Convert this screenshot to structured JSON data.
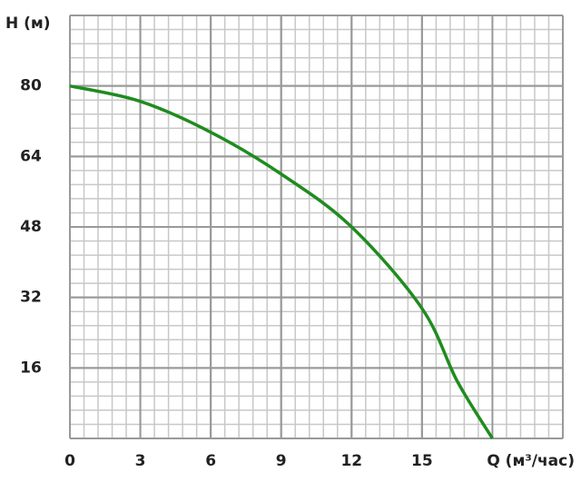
{
  "chart_data": {
    "type": "line",
    "y_label": "H (м)",
    "x_label": "Q (м³/час)",
    "x": [
      0,
      3,
      6,
      9,
      12,
      15,
      16.5,
      18
    ],
    "series": [
      {
        "color": "#1f8c1f",
        "values": [
          80,
          76.5,
          69.5,
          60,
          48,
          29.5,
          13,
          0
        ]
      }
    ],
    "xlim": [
      0,
      21
    ],
    "ylim": [
      0,
      96
    ],
    "xticks": [
      0,
      3,
      6,
      9,
      12,
      15
    ],
    "yticks": [
      16,
      32,
      48,
      64,
      80
    ],
    "grid": true,
    "minor_divisions": 5
  }
}
